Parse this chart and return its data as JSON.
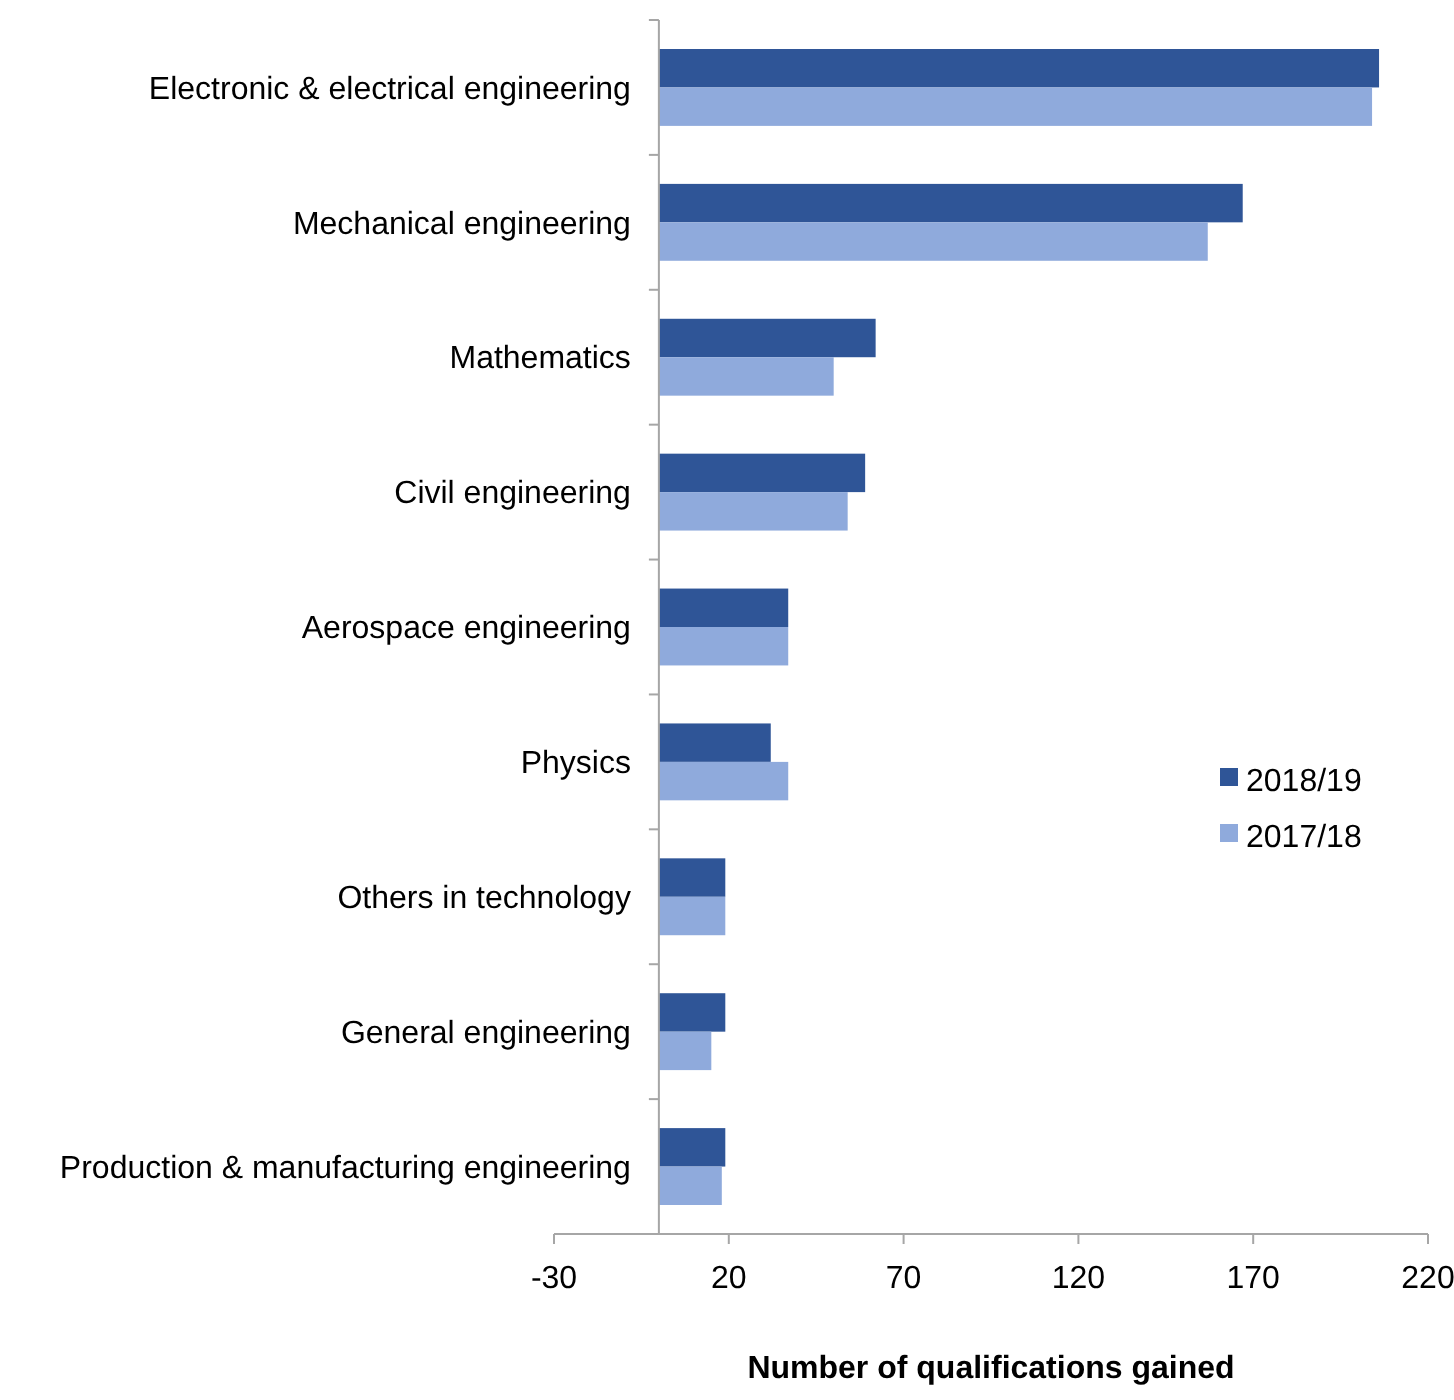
{
  "chart_data": {
    "type": "bar",
    "orientation": "horizontal",
    "xlabel": "Number of qualifications gained",
    "categories": [
      "Electronic & electrical engineering",
      "Mechanical engineering",
      "Mathematics",
      "Civil engineering",
      "Aerospace engineering",
      "Physics",
      "Others in technology",
      "General engineering",
      "Production & manufacturing engineering"
    ],
    "series": [
      {
        "name": "2018/19",
        "color": "#2f5597",
        "values": [
          206,
          167,
          62,
          59,
          37,
          32,
          19,
          19,
          19
        ]
      },
      {
        "name": "2017/18",
        "color": "#8faadc",
        "values": [
          204,
          157,
          50,
          54,
          37,
          37,
          19,
          15,
          18
        ]
      }
    ],
    "xlim": [
      -30,
      220
    ],
    "xticks": [
      -30,
      20,
      70,
      120,
      170,
      220
    ],
    "legend": "right",
    "grid": false
  }
}
